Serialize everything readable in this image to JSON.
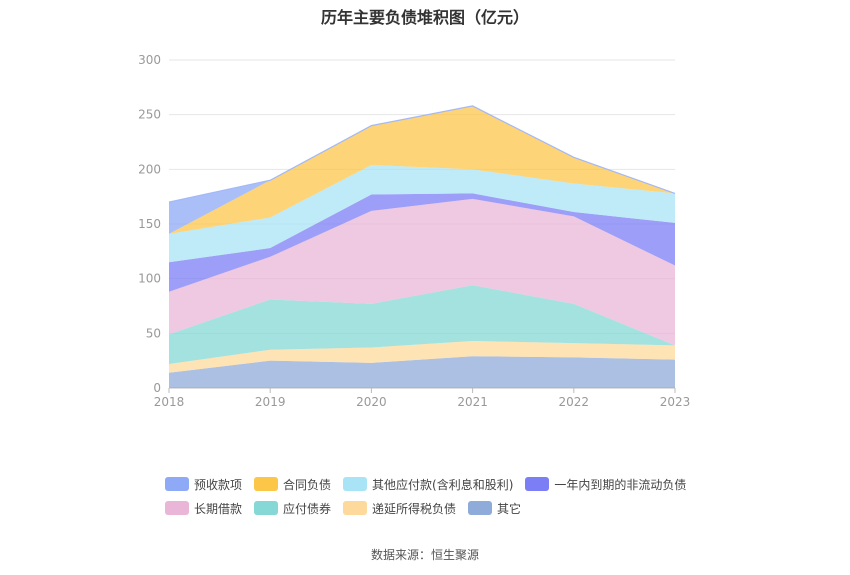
{
  "chart_data": {
    "type": "area",
    "stacked": true,
    "title": "历年主要负债堆积图（亿元）",
    "categories": [
      "2018",
      "2019",
      "2020",
      "2021",
      "2022",
      "2023"
    ],
    "ylim": [
      0,
      300
    ],
    "yticks": [
      0,
      50,
      100,
      150,
      200,
      250,
      300
    ],
    "grid": true,
    "legend_position": "bottom",
    "series": [
      {
        "name": "其它",
        "color": "#8fabd9",
        "values": [
          14,
          25,
          23,
          29,
          28,
          26
        ]
      },
      {
        "name": "递延所得税负债",
        "color": "#fdd99b",
        "values": [
          8,
          10,
          14,
          14,
          13,
          13
        ]
      },
      {
        "name": "应付债券",
        "color": "#85d8d5",
        "values": [
          27,
          46,
          40,
          51,
          36,
          0
        ]
      },
      {
        "name": "长期借款",
        "color": "#e9b6d8",
        "values": [
          39,
          39,
          85,
          79,
          80,
          73
        ]
      },
      {
        "name": "一年内到期的非流动负债",
        "color": "#7b7ef5",
        "values": [
          27,
          8,
          15,
          5,
          4,
          39
        ]
      },
      {
        "name": "其他应付款(含利息和股利)",
        "color": "#a9e3f6",
        "values": [
          26,
          28,
          27,
          22,
          26,
          27
        ]
      },
      {
        "name": "合同负债",
        "color": "#fcc649",
        "values": [
          0,
          34,
          36,
          58,
          24,
          0
        ]
      },
      {
        "name": "预收款项",
        "color": "#8ea9f5",
        "values": [
          29,
          0,
          0,
          0,
          0,
          0
        ]
      }
    ]
  },
  "legend_rows": [
    [
      "预收款项",
      "合同负债",
      "其他应付款(含利息和股利)",
      "一年内到期的非流动负债"
    ],
    [
      "长期借款",
      "应付债券",
      "递延所得税负债",
      "其它"
    ]
  ],
  "source": "数据来源：恒生聚源"
}
